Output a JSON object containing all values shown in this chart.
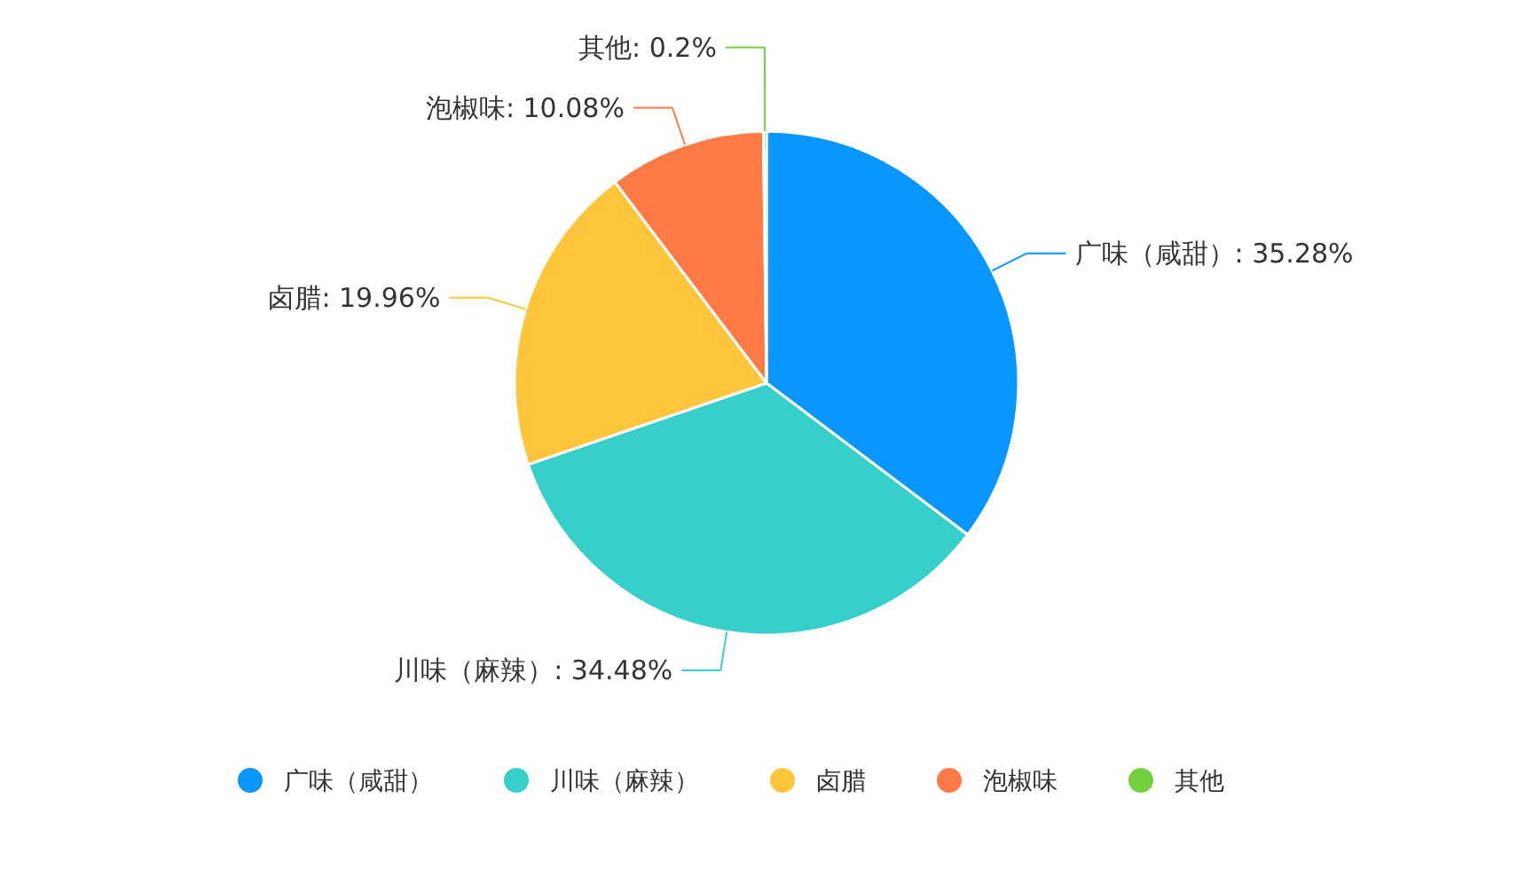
{
  "chart_data": {
    "type": "pie",
    "categories": [
      "广味（咸甜）",
      "川味（麻辣）",
      "卤腊",
      "泡椒味",
      "其他"
    ],
    "values": [
      35.28,
      34.48,
      19.96,
      10.08,
      0.2
    ],
    "value_labels": [
      "广味（咸甜）: 35.28%",
      "川味（麻辣）: 34.48%",
      "卤腊: 19.96%",
      "泡椒味: 10.08%",
      "其他: 0.2%"
    ],
    "colors": [
      "#0a96ff",
      "#36cfc9",
      "#ffc53d",
      "#ff7a45",
      "#73d13d"
    ],
    "legend": "bottom"
  }
}
